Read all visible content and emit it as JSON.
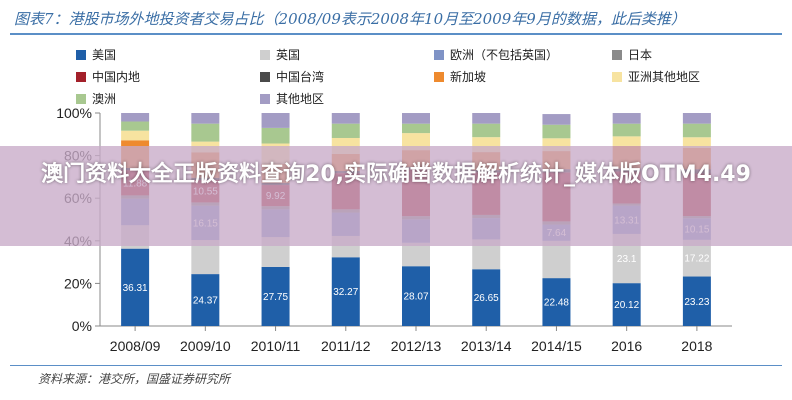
{
  "title": "图表7：港股市场外地投资者交易占比（2008/09表示2008年10月至2009年9月的数据，此后类推）",
  "source": "资料来源：港交所，国盛证券研究所",
  "overlay_text": "澳门资料大全正版资料查询20,实际确凿数据解析统计_媒体版OTM4.49",
  "chart_data": {
    "type": "bar",
    "stacked": true,
    "categories": [
      "2008/09",
      "2009/10",
      "2010/11",
      "2011/12",
      "2012/13",
      "2013/14",
      "2014/15",
      "2016",
      "2018"
    ],
    "ylim": [
      0,
      100
    ],
    "yticks": [
      "0%",
      "20%",
      "40%",
      "60%",
      "80%",
      "100%"
    ],
    "legend_position": "top",
    "series": [
      {
        "name": "美国",
        "color": "#1f5fa8",
        "labels": [
          "36.31",
          "24.37",
          "27.75",
          "32.27",
          "28.07",
          "26.65",
          "22.48",
          "20.12",
          "23.23"
        ],
        "values": [
          36.31,
          24.37,
          27.75,
          32.27,
          28.07,
          26.65,
          22.48,
          20.12,
          23.23
        ]
      },
      {
        "name": "英国",
        "color": "#cfcfcf",
        "labels": [
          "",
          "",
          "",
          "",
          "",
          "",
          "",
          "23.1",
          "17.22"
        ],
        "values": [
          11.0,
          16.0,
          14.0,
          10.0,
          11.0,
          14.0,
          17.5,
          23.1,
          17.22
        ]
      },
      {
        "name": "欧洲（不包括英国）",
        "color": "#7f93c6",
        "labels": [
          "",
          "16.15",
          "",
          "",
          "",
          "",
          "7.64",
          "13.31",
          "10.15"
        ],
        "values": [
          12.5,
          16.15,
          13.0,
          11.0,
          11.0,
          10.0,
          7.64,
          13.31,
          10.15
        ]
      },
      {
        "name": "日本",
        "color": "#8a8a8a",
        "labels": [
          "",
          "",
          "",
          "",
          "",
          "",
          "",
          "",
          ""
        ],
        "values": [
          1.5,
          1.5,
          1.5,
          1.5,
          1.5,
          1.5,
          1.5,
          1.0,
          1.0
        ]
      },
      {
        "name": "中国内地",
        "color": "#a3202a",
        "labels": [
          "11.88",
          "10.55",
          "9.92",
          "",
          "",
          "",
          "",
          "",
          ""
        ],
        "values": [
          11.88,
          10.55,
          9.92,
          17.0,
          22.0,
          20.0,
          23.0,
          15.0,
          20.0
        ]
      },
      {
        "name": "中国台湾",
        "color": "#4a4a4a",
        "labels": [
          "",
          "",
          "",
          "",
          "",
          "",
          "",
          "",
          ""
        ],
        "values": [
          1.0,
          1.0,
          1.0,
          1.0,
          1.0,
          1.0,
          1.5,
          1.5,
          2.0
        ]
      },
      {
        "name": "新加坡",
        "color": "#ee8a2e",
        "labels": [
          "",
          "",
          "",
          "",
          "",
          "",
          "",
          "",
          ""
        ],
        "values": [
          13.0,
          12.0,
          9.0,
          8.0,
          8.0,
          8.5,
          8.5,
          10.5,
          10.0
        ]
      },
      {
        "name": "亚洲其他地区",
        "color": "#f7e3a0",
        "labels": [
          "",
          "",
          "",
          "",
          "",
          "",
          "",
          "",
          ""
        ],
        "values": [
          4.5,
          5.0,
          9.5,
          7.5,
          8.0,
          7.0,
          6.0,
          4.5,
          5.0
        ]
      },
      {
        "name": "澳洲",
        "color": "#a8c890",
        "labels": [
          "",
          "",
          "",
          "",
          "",
          "",
          "",
          "",
          ""
        ],
        "values": [
          4.31,
          8.43,
          7.33,
          6.73,
          4.42,
          6.35,
          6.38,
          5.96,
          6.4
        ]
      },
      {
        "name": "其他地区",
        "color": "#a39cc4",
        "labels": [
          "",
          "",
          "",
          "",
          "",
          "",
          "",
          "",
          ""
        ],
        "values": [
          4.0,
          5.0,
          7.0,
          5.0,
          5.0,
          5.0,
          5.0,
          5.0,
          5.0
        ]
      }
    ]
  }
}
